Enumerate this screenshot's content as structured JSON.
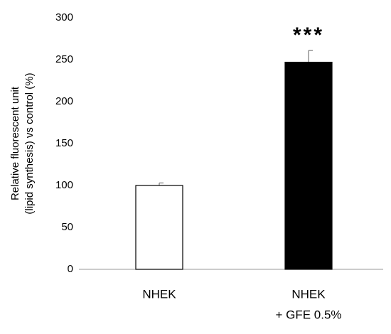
{
  "chart_data": {
    "type": "bar",
    "ylabel": [
      "Relative fluorescent unit",
      "(lipid synthesis) vs control (%)"
    ],
    "categories": [
      [
        "NHEK"
      ],
      [
        "NHEK",
        "+ GFE 0.5%"
      ]
    ],
    "values": [
      100,
      247
    ],
    "errors": [
      3,
      14
    ],
    "colors": [
      "#ffffff",
      "#000000"
    ],
    "annotations": [
      null,
      "***"
    ],
    "ylim": [
      0,
      300
    ],
    "yticks": [
      0,
      50,
      100,
      150,
      200,
      250,
      300
    ],
    "grid": false
  }
}
